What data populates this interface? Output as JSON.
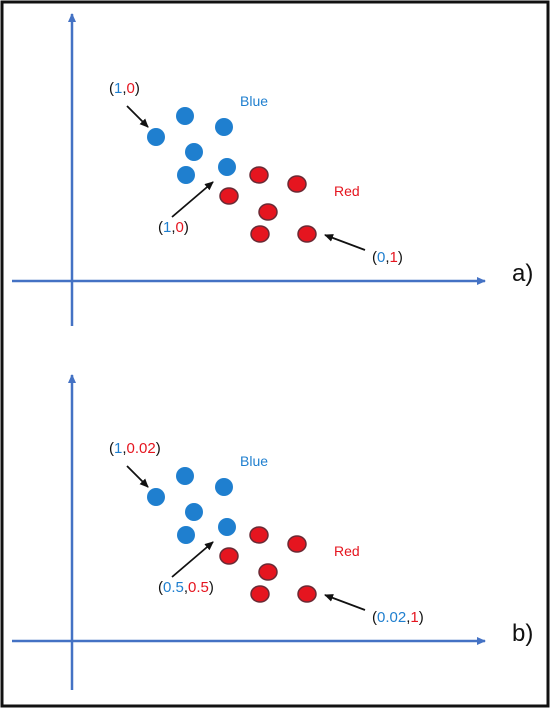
{
  "colors": {
    "axis": "#4472C4",
    "blue": "#1F7FCF",
    "red": "#E5151F",
    "red_stroke": "#6A2A35",
    "arrow": "#111111",
    "border": "#111111"
  },
  "panels": [
    {
      "id": "a",
      "panel_label": "a)",
      "blue_label": "Blue",
      "red_label": "Red",
      "annotations": [
        {
          "parts": [
            {
              "t": "(",
              "c": "black"
            },
            {
              "t": "1",
              "c": "blue"
            },
            {
              "t": ",",
              "c": "black"
            },
            {
              "t": "0",
              "c": "red"
            },
            {
              "t": ")",
              "c": "black"
            }
          ]
        },
        {
          "parts": [
            {
              "t": "(",
              "c": "black"
            },
            {
              "t": "1",
              "c": "blue"
            },
            {
              "t": ",",
              "c": "black"
            },
            {
              "t": "0",
              "c": "red"
            },
            {
              "t": ")",
              "c": "black"
            }
          ]
        },
        {
          "parts": [
            {
              "t": "(",
              "c": "black"
            },
            {
              "t": "0",
              "c": "blue"
            },
            {
              "t": ",",
              "c": "black"
            },
            {
              "t": "1",
              "c": "red"
            },
            {
              "t": ")",
              "c": "black"
            }
          ]
        }
      ]
    },
    {
      "id": "b",
      "panel_label": "b)",
      "blue_label": "Blue",
      "red_label": "Red",
      "annotations": [
        {
          "parts": [
            {
              "t": "(",
              "c": "black"
            },
            {
              "t": "1",
              "c": "blue"
            },
            {
              "t": ",",
              "c": "black"
            },
            {
              "t": "0.02",
              "c": "red"
            },
            {
              "t": ")",
              "c": "black"
            }
          ]
        },
        {
          "parts": [
            {
              "t": "(",
              "c": "black"
            },
            {
              "t": "0.5",
              "c": "blue"
            },
            {
              "t": ",",
              "c": "black"
            },
            {
              "t": "0.5",
              "c": "red"
            },
            {
              "t": ")",
              "c": "black"
            }
          ]
        },
        {
          "parts": [
            {
              "t": "(",
              "c": "black"
            },
            {
              "t": "0.02",
              "c": "blue"
            },
            {
              "t": ",",
              "c": "black"
            },
            {
              "t": "1",
              "c": "red"
            },
            {
              "t": ")",
              "c": "black"
            }
          ]
        }
      ]
    }
  ]
}
